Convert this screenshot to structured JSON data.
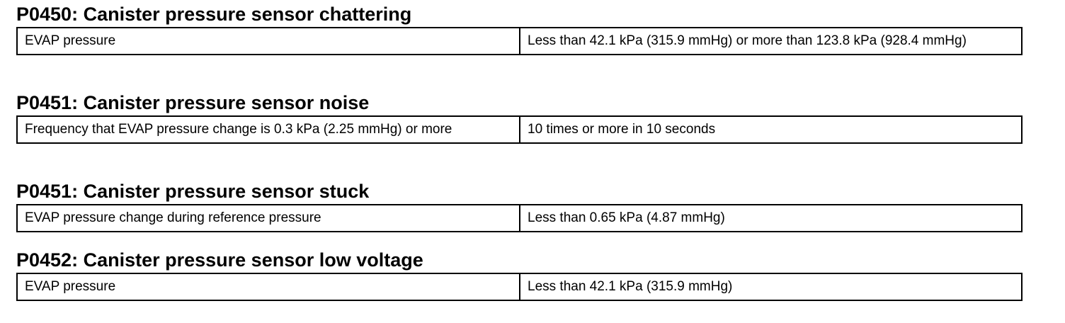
{
  "sections": [
    {
      "heading": "P0450: Canister pressure sensor chattering",
      "condition": "EVAP pressure",
      "threshold": "Less than 42.1 kPa (315.9 mmHg) or more than 123.8 kPa (928.4 mmHg)"
    },
    {
      "heading": "P0451: Canister pressure sensor noise",
      "condition": "Frequency that EVAP pressure change is 0.3 kPa (2.25 mmHg) or more",
      "threshold": "10 times or more in 10 seconds"
    },
    {
      "heading": "P0451: Canister pressure sensor stuck",
      "condition": "EVAP pressure change during reference pressure",
      "threshold": "Less than 0.65 kPa (4.87 mmHg)"
    },
    {
      "heading": "P0452: Canister pressure sensor low voltage",
      "condition": "EVAP pressure",
      "threshold": "Less than 42.1 kPa (315.9 mmHg)"
    }
  ]
}
